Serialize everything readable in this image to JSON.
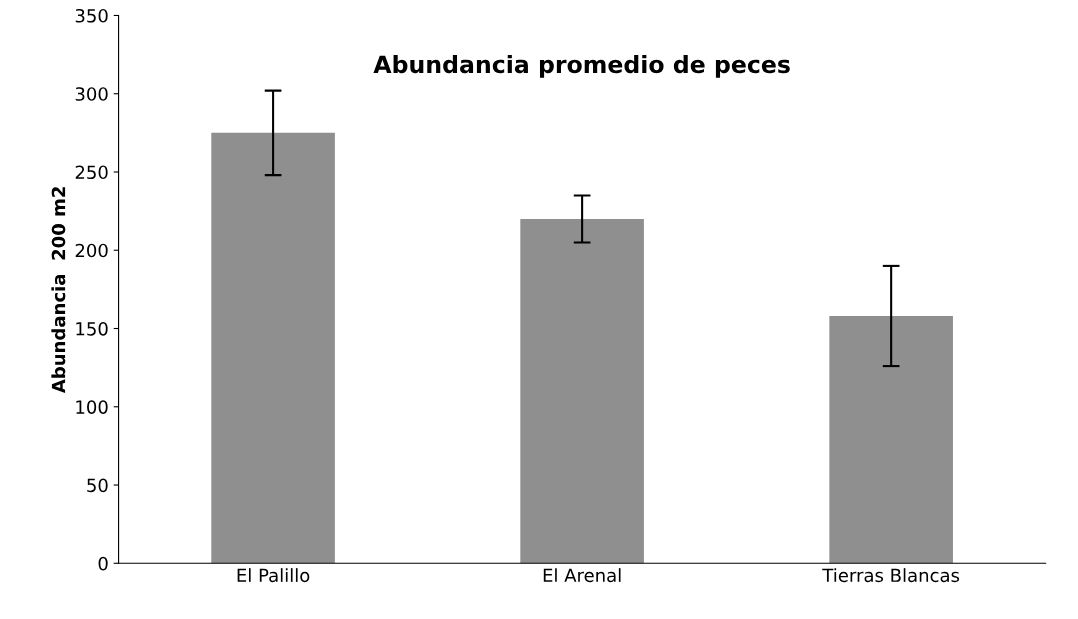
{
  "chart_data": {
    "type": "bar",
    "title": "Abundancia promedio de peces",
    "ylabel": "Abundancia  200 m2",
    "categories": [
      "El Palillo",
      "El Arenal",
      "Tierras Blancas"
    ],
    "values": [
      275,
      220,
      158
    ],
    "errors": [
      27,
      15,
      32
    ],
    "color": "#8f8f8f",
    "ylim": [
      0,
      350
    ],
    "yticks": [
      0,
      50,
      100,
      150,
      200,
      250,
      300,
      350
    ],
    "grid": false,
    "legend": false
  }
}
